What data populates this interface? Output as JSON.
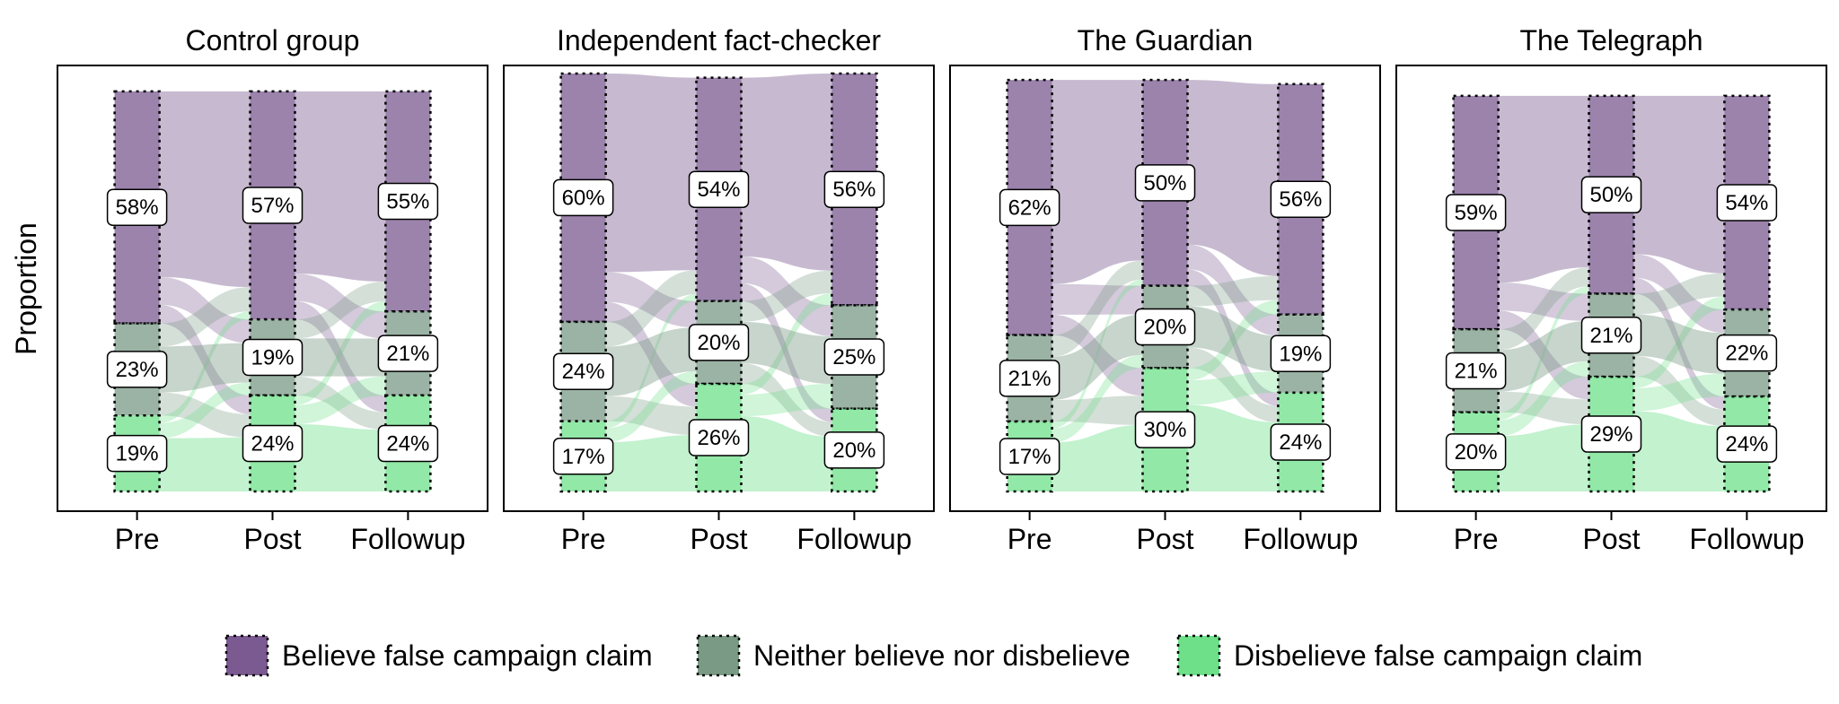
{
  "colors": {
    "believe": "#7a5a90",
    "neither": "#7a9a86",
    "disbelieve": "#6ee08a",
    "frame": "#000000",
    "label_bg": "#ffffff"
  },
  "chart_data": {
    "type": "alluvial",
    "ylabel": "Proportion",
    "categories": [
      "Pre",
      "Post",
      "Followup"
    ],
    "legend": {
      "position": "bottom",
      "items": [
        {
          "key": "believe",
          "label": "Believe false campaign claim"
        },
        {
          "key": "neither",
          "label": "Neither believe nor disbelieve"
        },
        {
          "key": "disbelieve",
          "label": "Disbelieve false campaign claim"
        }
      ]
    },
    "panels": [
      {
        "title": "Control group",
        "total": 0.88,
        "stacks": [
          {
            "believe": 58,
            "neither": 23,
            "disbelieve": 19
          },
          {
            "believe": 57,
            "neither": 19,
            "disbelieve": 24
          },
          {
            "believe": 55,
            "neither": 21,
            "disbelieve": 24
          }
        ],
        "labels": [
          {
            "believe": "58%",
            "neither": "23%",
            "disbelieve": "19%"
          },
          {
            "believe": "57%",
            "neither": "19%",
            "disbelieve": "24%"
          },
          {
            "believe": "55%",
            "neither": "21%",
            "disbelieve": "24%"
          }
        ]
      },
      {
        "title": "Independent fact-checker",
        "total": 0.91,
        "stacks": [
          {
            "believe": 60,
            "neither": 24,
            "disbelieve": 17
          },
          {
            "believe": 54,
            "neither": 20,
            "disbelieve": 26
          },
          {
            "believe": 56,
            "neither": 25,
            "disbelieve": 20
          }
        ],
        "labels": [
          {
            "believe": "60%",
            "neither": "24%",
            "disbelieve": "17%"
          },
          {
            "believe": "54%",
            "neither": "20%",
            "disbelieve": "26%"
          },
          {
            "believe": "56%",
            "neither": "25%",
            "disbelieve": "20%"
          }
        ]
      },
      {
        "title": "The Guardian",
        "total": 0.905,
        "stacks": [
          {
            "believe": 62,
            "neither": 21,
            "disbelieve": 17
          },
          {
            "believe": 50,
            "neither": 20,
            "disbelieve": 30
          },
          {
            "believe": 56,
            "neither": 19,
            "disbelieve": 24
          }
        ],
        "labels": [
          {
            "believe": "62%",
            "neither": "21%",
            "disbelieve": "17%"
          },
          {
            "believe": "50%",
            "neither": "20%",
            "disbelieve": "30%"
          },
          {
            "believe": "56%",
            "neither": "19%",
            "disbelieve": "24%"
          }
        ]
      },
      {
        "title": "The Telegraph",
        "total": 0.87,
        "stacks": [
          {
            "believe": 59,
            "neither": 21,
            "disbelieve": 20
          },
          {
            "believe": 50,
            "neither": 21,
            "disbelieve": 29
          },
          {
            "believe": 54,
            "neither": 22,
            "disbelieve": 24
          }
        ],
        "labels": [
          {
            "believe": "59%",
            "neither": "21%",
            "disbelieve": "20%"
          },
          {
            "believe": "50%",
            "neither": "21%",
            "disbelieve": "29%"
          },
          {
            "believe": "54%",
            "neither": "22%",
            "disbelieve": "24%"
          }
        ]
      }
    ]
  }
}
